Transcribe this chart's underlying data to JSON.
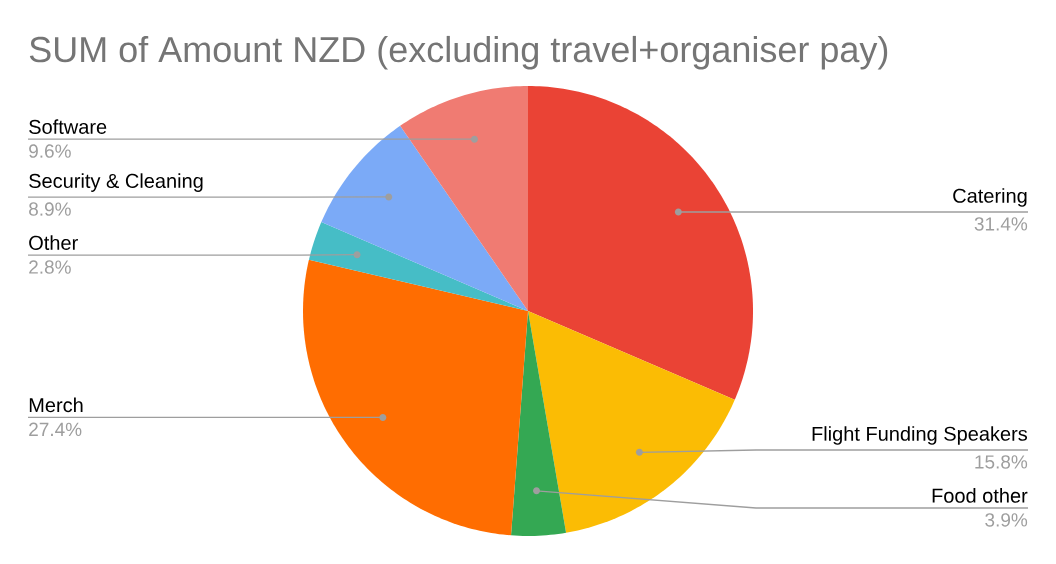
{
  "chart_data": {
    "type": "pie",
    "title": "SUM of Amount NZD (excluding travel+organiser pay)",
    "categories": [
      "Catering",
      "Flight Funding Speakers",
      "Food other",
      "Merch",
      "Other",
      "Security & Cleaning",
      "Software"
    ],
    "values": [
      31.4,
      15.8,
      3.9,
      27.4,
      2.8,
      8.9,
      9.6
    ],
    "value_labels": [
      "31.4%",
      "15.8%",
      "3.9%",
      "27.4%",
      "2.8%",
      "8.9%",
      "9.6%"
    ],
    "colors": [
      "#ea4335",
      "#fbbc04",
      "#34a853",
      "#ff6d01",
      "#46bdc6",
      "#7baaf7",
      "#f07b72"
    ]
  }
}
